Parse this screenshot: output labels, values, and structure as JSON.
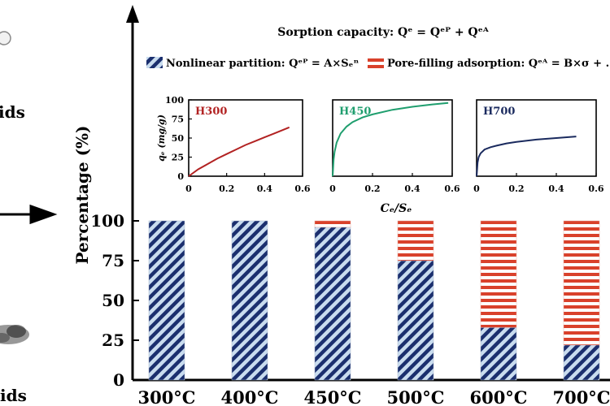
{
  "left_panel": {
    "label_top": "ids",
    "label_bottom": "ids"
  },
  "header": {
    "equation": "Sorption capacity: Qᵉ = Qᵉᴾ + Qᵉᴬ"
  },
  "legend": {
    "partition_label": "Nonlinear partition: Qᵉᴾ = A×Sₑⁿ",
    "pore_filling_label": "Pore-filling adsorption: Qᵉᴬ = B×σ + …"
  },
  "colors": {
    "partition_fill": "#c9dcef",
    "partition_stripe": "#1b2f6e",
    "pore_fill": "#ffffff",
    "pore_stripe": "#d9412b",
    "h300": "#b22222",
    "h450": "#1f9e6e",
    "h700": "#1a2a5e"
  },
  "chart_data": [
    {
      "type": "bar",
      "stacked": true,
      "categories": [
        "300°C",
        "400°C",
        "450°C",
        "500°C",
        "600°C",
        "700°C"
      ],
      "series": [
        {
          "name": "Nonlinear partition",
          "values": [
            100,
            100,
            96,
            75,
            33,
            22
          ]
        },
        {
          "name": "Pore-filling adsorption",
          "values": [
            0,
            0,
            4,
            25,
            67,
            78
          ]
        }
      ],
      "ylabel": "Percentage (%)",
      "yticks": [
        0,
        25,
        50,
        75,
        100
      ],
      "ylim": [
        0,
        100
      ]
    },
    {
      "type": "line",
      "title": "H300",
      "ylabel": "qₑ (mg/g)",
      "xticks": [
        "0",
        "0.2",
        "0.4",
        "0.6"
      ],
      "yticks": [
        "0",
        "25",
        "50",
        "75",
        "100"
      ],
      "xlim": [
        0,
        0.6
      ],
      "ylim": [
        0,
        100
      ],
      "x": [
        0.0,
        0.05,
        0.1,
        0.15,
        0.2,
        0.25,
        0.3,
        0.35,
        0.4,
        0.45,
        0.5,
        0.53
      ],
      "y": [
        0,
        9,
        16,
        23,
        29,
        35,
        41,
        46,
        51,
        56,
        61,
        64
      ]
    },
    {
      "type": "line",
      "title": "H450",
      "xticks": [
        "0",
        "0.2",
        "0.4",
        "0.6"
      ],
      "xlabel": "Cₑ/Sₑ",
      "xlim": [
        0,
        0.6
      ],
      "ylim": [
        0,
        100
      ],
      "x": [
        0.0,
        0.005,
        0.01,
        0.02,
        0.04,
        0.07,
        0.1,
        0.15,
        0.2,
        0.3,
        0.4,
        0.5,
        0.58
      ],
      "y": [
        0,
        22,
        32,
        44,
        56,
        65,
        71,
        77,
        81,
        87,
        91,
        94,
        96
      ]
    },
    {
      "type": "line",
      "title": "H700",
      "xticks": [
        "0",
        "0.2",
        "0.4",
        "0.6"
      ],
      "xlim": [
        0,
        0.6
      ],
      "ylim": [
        0,
        100
      ],
      "x": [
        0.0,
        0.005,
        0.01,
        0.02,
        0.04,
        0.07,
        0.1,
        0.15,
        0.2,
        0.3,
        0.4,
        0.5
      ],
      "y": [
        0,
        18,
        25,
        30,
        35,
        38,
        40,
        43,
        45,
        48,
        50,
        52
      ]
    }
  ]
}
